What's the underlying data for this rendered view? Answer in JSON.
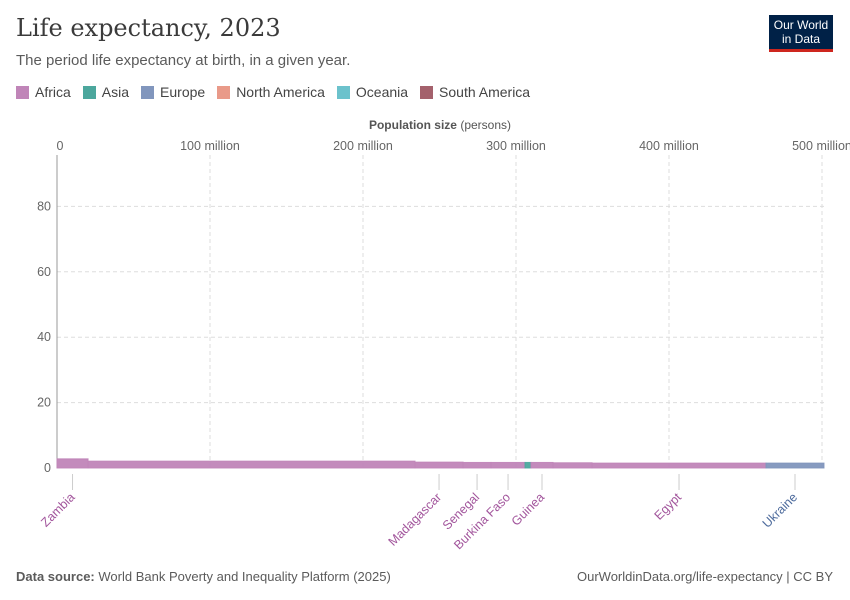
{
  "header": {
    "title": "Life expectancy, 2023",
    "subtitle": "The period life expectancy at birth, in a given year.",
    "logo": "Our World in Data"
  },
  "legend": [
    {
      "label": "Africa",
      "color": "#c085b8"
    },
    {
      "label": "Asia",
      "color": "#4ca79d"
    },
    {
      "label": "Europe",
      "color": "#8196bd"
    },
    {
      "label": "North America",
      "color": "#e99a89"
    },
    {
      "label": "Oceania",
      "color": "#6cc2cc"
    },
    {
      "label": "South America",
      "color": "#a4616c"
    }
  ],
  "chart_data": {
    "type": "bar",
    "subtype": "marimekko",
    "xlabel_bold": "Population size",
    "xlabel_unit": "(persons)",
    "xlim": [
      0,
      505
    ],
    "ylim": [
      0,
      95
    ],
    "x_ticks": [
      {
        "v": 0,
        "label": "0"
      },
      {
        "v": 100,
        "label": "100 million"
      },
      {
        "v": 200,
        "label": "200 million"
      },
      {
        "v": 300,
        "label": "300 million"
      },
      {
        "v": 400,
        "label": "400 million"
      },
      {
        "v": 500,
        "label": "500 million"
      }
    ],
    "y_ticks": [
      {
        "v": 0,
        "label": "0"
      },
      {
        "v": 20,
        "label": "20"
      },
      {
        "v": 40,
        "label": "40"
      },
      {
        "v": 60,
        "label": "60"
      },
      {
        "v": 80,
        "label": "80"
      }
    ],
    "grid": true,
    "segments": [
      {
        "entity": "Zambia",
        "continent": "Africa",
        "population_millions": 20.3,
        "value": 2.8
      },
      {
        "entity": "",
        "continent": "Africa",
        "population_millions": 213.7,
        "value": 2.1
      },
      {
        "entity": "Madagascar",
        "continent": "Africa",
        "population_millions": 31.4,
        "value": 1.8
      },
      {
        "entity": "Senegal",
        "continent": "Africa",
        "population_millions": 18.3,
        "value": 1.7
      },
      {
        "entity": "Burkina Faso",
        "continent": "Africa",
        "population_millions": 22.2,
        "value": 1.7
      },
      {
        "entity": "",
        "continent": "Asia",
        "population_millions": 3.9,
        "value": 1.7
      },
      {
        "entity": "Guinea",
        "continent": "Africa",
        "population_millions": 14.4,
        "value": 1.7
      },
      {
        "entity": "",
        "continent": "Africa",
        "population_millions": 25.5,
        "value": 1.6
      },
      {
        "entity": "Egypt",
        "continent": "Africa",
        "population_millions": 113.7,
        "value": 1.5
      },
      {
        "entity": "Ukraine",
        "continent": "Europe",
        "population_millions": 37.9,
        "value": 1.5
      }
    ]
  },
  "footer": {
    "source_label": "Data source:",
    "source": "World Bank Poverty and Inequality Platform (2025)",
    "url": "OurWorldinData.org/life-expectancy | CC BY"
  }
}
